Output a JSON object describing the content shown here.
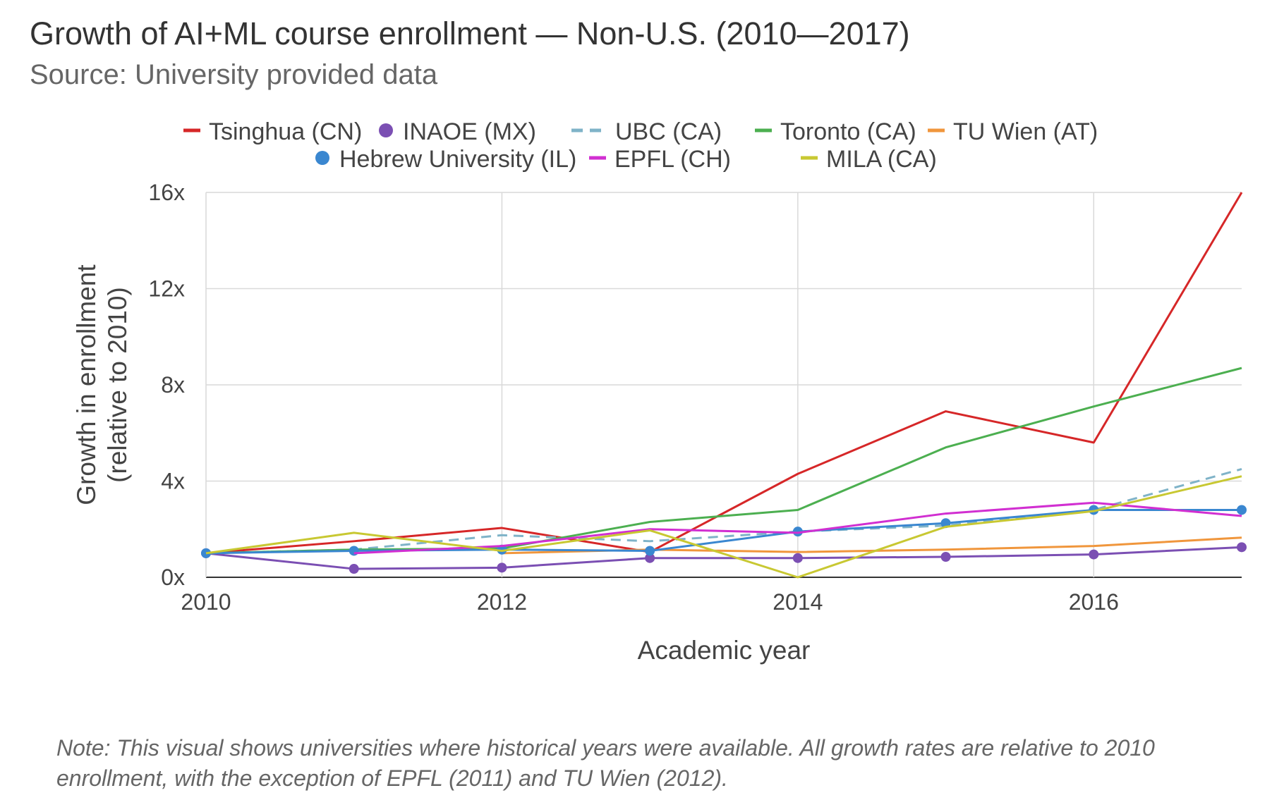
{
  "title": "Growth of AI+ML course enrollment — Non-U.S. (2010—2017)",
  "subtitle": "Source: University provided data",
  "note": "Note: This visual shows universities where historical years were available. All growth rates are relative to 2010 enrollment, with the exception of EPFL (2011) and TU Wien (2012).",
  "chart_data": {
    "type": "line",
    "title": "Growth of AI+ML course enrollment — Non-U.S. (2010—2017)",
    "xlabel": "Academic year",
    "ylabel": "Growth in enrollment (relative to 2010)",
    "xlim": [
      2010,
      2017
    ],
    "ylim": [
      0,
      16
    ],
    "x_ticks": [
      2010,
      2012,
      2014,
      2016
    ],
    "x_tick_labels": [
      "2010",
      "2012",
      "2014",
      "2016"
    ],
    "y_ticks": [
      0,
      4,
      8,
      12,
      16
    ],
    "y_tick_labels": [
      "0x",
      "4x",
      "8x",
      "12x",
      "16x"
    ],
    "grid": true,
    "legend_position": "top",
    "series": [
      {
        "name": "Tsinghua (CN)",
        "color": "#d62728",
        "style": "solid",
        "markers": false,
        "x": [
          2010,
          2011,
          2012,
          2013,
          2014,
          2015,
          2016,
          2017
        ],
        "y": [
          1.0,
          1.5,
          2.05,
          1.05,
          4.3,
          6.9,
          5.6,
          16.0
        ]
      },
      {
        "name": "INAOE (MX)",
        "color": "#7b4fb3",
        "style": "solid",
        "markers": true,
        "x": [
          2010,
          2011,
          2012,
          2013,
          2014,
          2015,
          2016,
          2017
        ],
        "y": [
          1.0,
          0.35,
          0.4,
          0.8,
          0.8,
          0.85,
          0.95,
          1.25
        ]
      },
      {
        "name": "UBC (CA)",
        "color": "#7fb3c8",
        "style": "dashed",
        "markers": false,
        "x": [
          2010,
          2011,
          2012,
          2013,
          2014,
          2015,
          2016,
          2017
        ],
        "y": [
          1.0,
          1.15,
          1.75,
          1.5,
          1.9,
          2.15,
          2.8,
          4.5
        ]
      },
      {
        "name": "Toronto (CA)",
        "color": "#4caf50",
        "style": "solid",
        "markers": false,
        "x": [
          2010,
          2011,
          2012,
          2013,
          2014,
          2015,
          2016,
          2017
        ],
        "y": [
          1.0,
          1.15,
          1.2,
          2.3,
          2.8,
          5.4,
          7.1,
          8.7
        ]
      },
      {
        "name": "TU Wien (AT)",
        "color": "#f0963c",
        "style": "solid",
        "markers": false,
        "x": [
          2012,
          2013,
          2014,
          2015,
          2016,
          2017
        ],
        "y": [
          1.0,
          1.15,
          1.05,
          1.15,
          1.3,
          1.65
        ]
      },
      {
        "name": "Hebrew University (IL)",
        "color": "#3a87d0",
        "style": "solid",
        "markers": true,
        "x": [
          2010,
          2011,
          2012,
          2013,
          2014,
          2015,
          2016,
          2017
        ],
        "y": [
          1.0,
          1.1,
          1.15,
          1.1,
          1.9,
          2.25,
          2.8,
          2.8
        ]
      },
      {
        "name": "EPFL (CH)",
        "color": "#d12fd1",
        "style": "solid",
        "markers": false,
        "x": [
          2011,
          2012,
          2013,
          2014,
          2015,
          2016,
          2017
        ],
        "y": [
          1.0,
          1.3,
          2.0,
          1.85,
          2.65,
          3.1,
          2.55
        ]
      },
      {
        "name": "MILA (CA)",
        "color": "#c8c832",
        "style": "solid",
        "markers": false,
        "x": [
          2010,
          2011,
          2012,
          2013,
          2014,
          2015,
          2016,
          2017
        ],
        "y": [
          1.0,
          1.85,
          1.1,
          1.95,
          0.0,
          2.1,
          2.75,
          4.2
        ]
      }
    ]
  }
}
